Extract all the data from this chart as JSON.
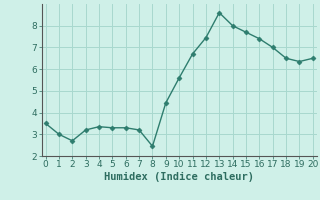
{
  "x": [
    0,
    1,
    2,
    3,
    4,
    5,
    6,
    7,
    8,
    9,
    10,
    11,
    12,
    13,
    14,
    15,
    16,
    17,
    18,
    19,
    20
  ],
  "y": [
    3.5,
    3.0,
    2.7,
    3.2,
    3.35,
    3.3,
    3.3,
    3.2,
    2.45,
    4.45,
    5.6,
    6.7,
    7.45,
    8.6,
    8.0,
    7.7,
    7.4,
    7.0,
    6.5,
    6.35,
    6.5
  ],
  "line_color": "#2e7d6e",
  "marker": "D",
  "marker_size": 2.5,
  "bg_color": "#cff0e8",
  "grid_color": "#a8d8ce",
  "xlabel": "Humidex (Indice chaleur)",
  "ylim": [
    2,
    9
  ],
  "xlim": [
    -0.3,
    20.3
  ],
  "yticks": [
    2,
    3,
    4,
    5,
    6,
    7,
    8
  ],
  "xticks": [
    0,
    1,
    2,
    3,
    4,
    5,
    6,
    7,
    8,
    9,
    10,
    11,
    12,
    13,
    14,
    15,
    16,
    17,
    18,
    19,
    20
  ],
  "spine_color": "#555555",
  "tick_color": "#2e6d60",
  "label_fontsize": 7.5,
  "tick_fontsize": 6.5,
  "linewidth": 1.0
}
